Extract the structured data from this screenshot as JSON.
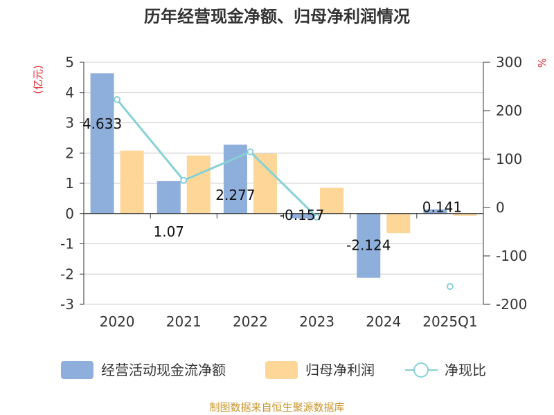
{
  "chart_data": {
    "type": "bar",
    "title": "历年经营现金净额、归母净利润情况",
    "categories": [
      "2020",
      "2021",
      "2022",
      "2023",
      "2024",
      "2025Q1"
    ],
    "series": [
      {
        "name": "经营活动现金流净额",
        "type": "bar",
        "axis": "left",
        "color": "#8eaedb",
        "values": [
          4.633,
          1.07,
          2.277,
          -0.157,
          -2.124,
          0.141
        ],
        "labels": [
          "4.633",
          "1.07",
          "2.277",
          "-0.157",
          "-2.124",
          "0.141"
        ]
      },
      {
        "name": "归母净利润",
        "type": "bar",
        "axis": "left",
        "color": "#fdd698",
        "values": [
          2.08,
          1.92,
          1.98,
          0.85,
          -0.65,
          -0.07
        ]
      },
      {
        "name": "净现比",
        "type": "line",
        "axis": "right",
        "color": "#86d1d6",
        "values": [
          223,
          56,
          115,
          -20,
          null,
          -163
        ]
      }
    ],
    "yleft": {
      "unit_label": "(亿元)",
      "ylim": [
        -3,
        5
      ],
      "ticks": [
        "5",
        "4",
        "3",
        "2",
        "1",
        "0",
        "-1",
        "-2",
        "-3"
      ]
    },
    "yright": {
      "unit_label": "%",
      "ylim": [
        -200,
        300
      ],
      "ticks": [
        "300",
        "200",
        "100",
        "0",
        "-100",
        "-200"
      ]
    },
    "grid": true,
    "legend_position": "bottom",
    "source": "制图数据来自恒生聚源数据库"
  }
}
